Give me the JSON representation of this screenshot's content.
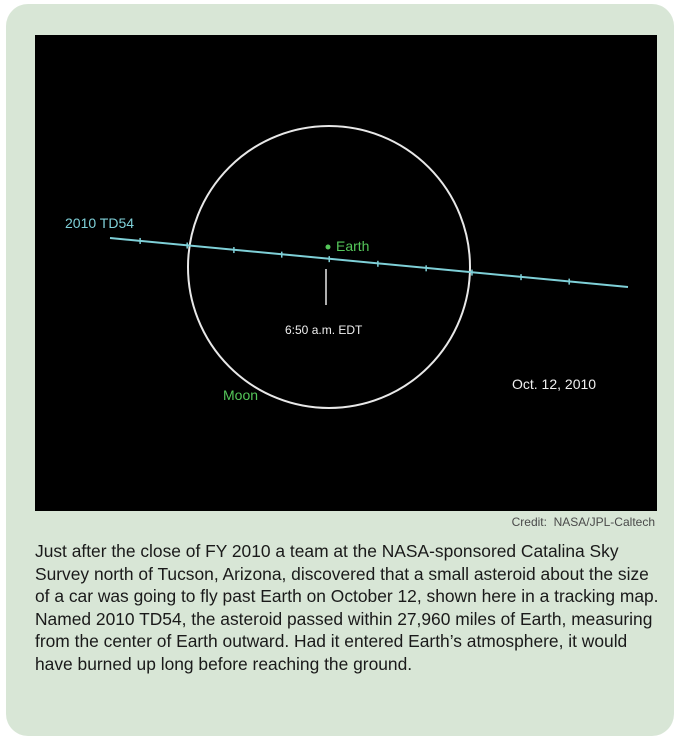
{
  "figure": {
    "asteroid_label": "2010 TD54",
    "earth_label": "Earth",
    "moon_label": "Moon",
    "time_label": "6:50 a.m. EDT",
    "date_label": "Oct. 12, 2010",
    "colors": {
      "background": "#000000",
      "trajectory": "#7fd0d8",
      "earth": "#55c75a",
      "moon_label": "#55c75a",
      "orbit": "#e8e8e8",
      "text": "#f0f0f0"
    }
  },
  "credit": "Credit:  NASA/JPL-Caltech",
  "caption": "Just after the close of FY 2010 a team at the NASA-sponsored Catalina Sky Survey north of Tucson, Arizona, discovered that a small asteroid about the size of a car was going to fly past Earth on October 12, shown here in a tracking map.  Named 2010 TD54, the asteroid passed within 27,960 miles of Earth, measuring from the center of Earth outward.  Had it entered Earth’s atmosphere, it would have burned up long before reaching the ground.",
  "panel_color": "#d8e6d6"
}
